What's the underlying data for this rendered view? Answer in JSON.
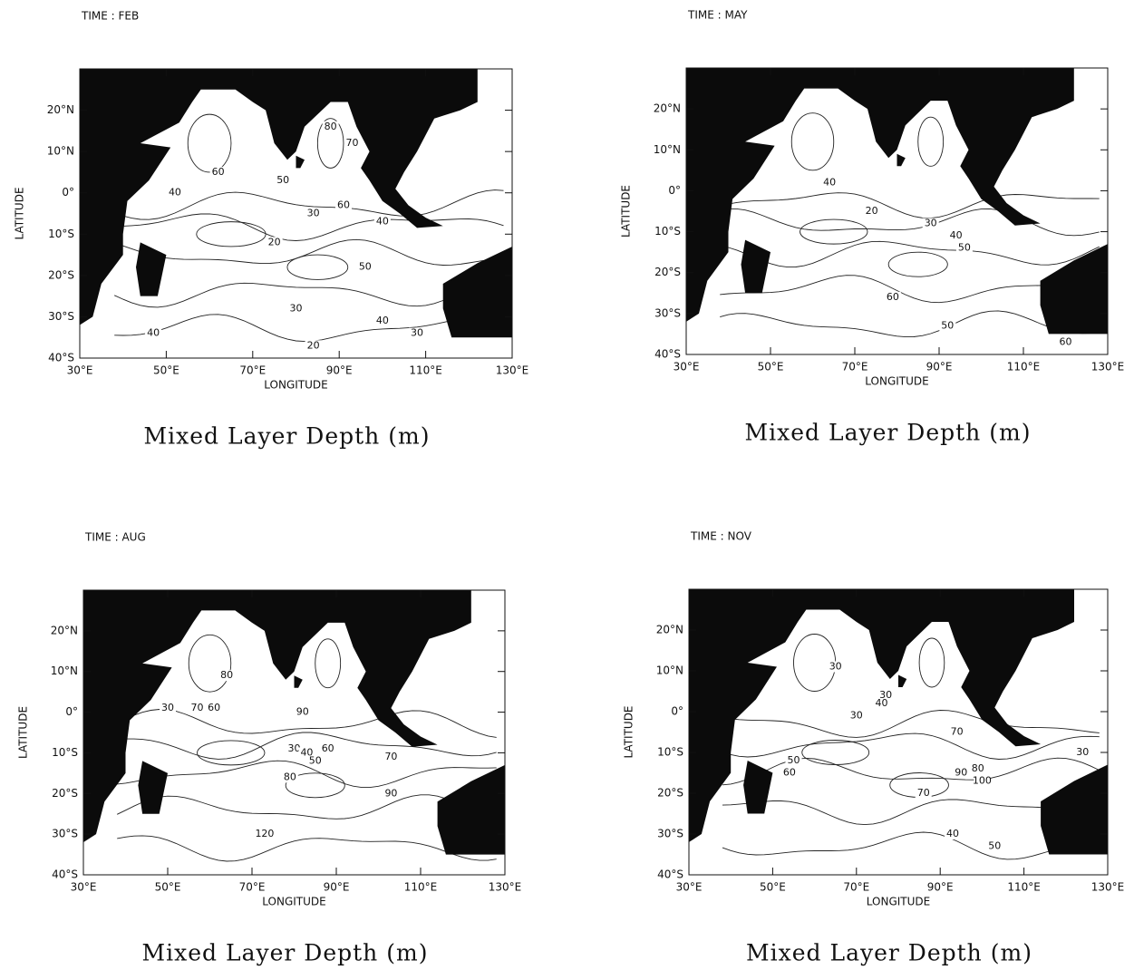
{
  "panels": [
    {
      "time": "TIME : FEB",
      "caption": "Mixed Layer Depth (m)",
      "xlabel": "LONGITUDE",
      "ylabel": "LATITUDE",
      "contour_labels": [
        80,
        70,
        60,
        50,
        40,
        30,
        60,
        40,
        20,
        50,
        30,
        40,
        30,
        40,
        20
      ]
    },
    {
      "time": "TIME : MAY",
      "caption": "Mixed Layer Depth (m)",
      "xlabel": "LONGITUDE",
      "ylabel": "LATITUDE",
      "contour_labels": [
        40,
        20,
        30,
        40,
        50,
        60,
        50,
        60
      ]
    },
    {
      "time": "TIME : AUG",
      "caption": "Mixed Layer Depth (m)",
      "xlabel": "LONGITUDE",
      "ylabel": "LATITUDE",
      "contour_labels": [
        80,
        30,
        70,
        60,
        90,
        30,
        40,
        50,
        60,
        70,
        80,
        90,
        120
      ]
    },
    {
      "time": "TIME : NOV",
      "caption": "Mixed Layer Depth (m)",
      "xlabel": "LONGITUDE",
      "ylabel": "LATITUDE",
      "contour_labels": [
        30,
        30,
        40,
        30,
        50,
        60,
        70,
        90,
        80,
        100,
        70,
        40,
        50,
        30
      ]
    }
  ],
  "axes": {
    "xlim": [
      30,
      130
    ],
    "ylim": [
      -40,
      30
    ],
    "xticks": [
      {
        "value": 30,
        "label": "30°E"
      },
      {
        "value": 50,
        "label": "50°E"
      },
      {
        "value": 70,
        "label": "70°E"
      },
      {
        "value": 90,
        "label": "90°E"
      },
      {
        "value": 110,
        "label": "110°E"
      },
      {
        "value": 130,
        "label": "130°E"
      }
    ],
    "yticks": [
      {
        "value": 20,
        "label": "20°N"
      },
      {
        "value": 10,
        "label": "10°N"
      },
      {
        "value": 0,
        "label": "0°"
      },
      {
        "value": -10,
        "label": "10°S"
      },
      {
        "value": -20,
        "label": "20°S"
      },
      {
        "value": -30,
        "label": "30°S"
      },
      {
        "value": -40,
        "label": "40°S"
      }
    ]
  }
}
